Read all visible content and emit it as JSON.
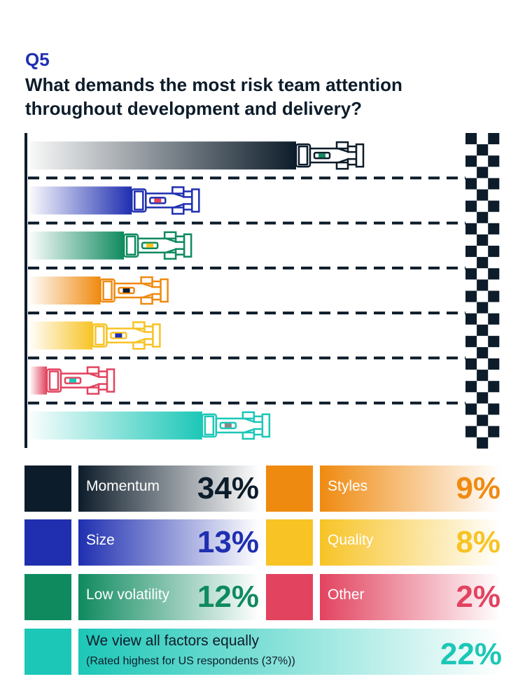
{
  "header": {
    "question": "Q5",
    "title": "What demands the most risk team attention throughout development and delivery?"
  },
  "chart_data": {
    "type": "bar",
    "orientation": "horizontal",
    "categories": [
      "Momentum",
      "Size",
      "Low volatility",
      "Styles",
      "Quality",
      "Other",
      "We view all factors equally"
    ],
    "values": [
      34,
      13,
      12,
      9,
      8,
      2,
      22
    ],
    "value_labels": [
      "34%",
      "13%",
      "12%",
      "9%",
      "8%",
      "2%",
      "22%"
    ],
    "colors": [
      "#0d1c2a",
      "#1f2fb0",
      "#0f8a5f",
      "#ef8a10",
      "#f7c325",
      "#e2435f",
      "#1cc7b7"
    ],
    "note": "(Rated highest for US respondents (37%))",
    "xlim": [
      0,
      34
    ],
    "unit": "%"
  }
}
